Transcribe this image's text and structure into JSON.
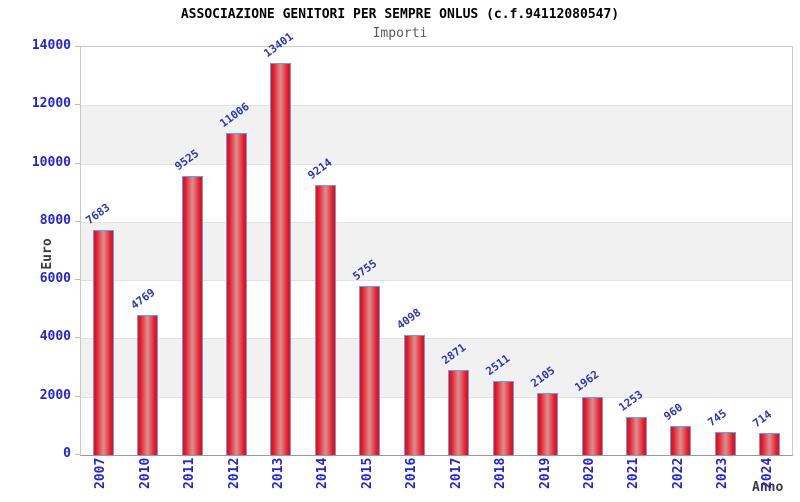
{
  "header": {
    "title": "ASSOCIAZIONE GENITORI PER SEMPRE ONLUS (c.f.94112080547)",
    "subtitle": "Importi"
  },
  "axes": {
    "y_label": "Euro",
    "x_label": "Anno",
    "y_ticks": [
      0,
      2000,
      4000,
      6000,
      8000,
      10000,
      12000,
      14000
    ]
  },
  "colors": {
    "tick_text": "#2424d0",
    "value_text": "#2c38ae",
    "bar_edge_red": "#e30b1e",
    "bar_mid_highlight": "#d98c8c",
    "bar_border_blue": "#64a0e8",
    "band_gray": "#f1f1f2",
    "band_white": "#ffffff",
    "grid_line": "#e2e2e2",
    "title_text": "#000000",
    "subtitle_text": "#5a5a5a"
  },
  "chart_data": {
    "type": "bar",
    "title": "ASSOCIAZIONE GENITORI PER SEMPRE ONLUS (c.f.94112080547)",
    "subtitle": "Importi",
    "xlabel": "Anno",
    "ylabel": "Euro",
    "ylim": [
      0,
      14000
    ],
    "grid": true,
    "band_pattern": "alternating white/gray every 2000 starting white at top",
    "categories": [
      "2007",
      "2010",
      "2011",
      "2012",
      "2013",
      "2014",
      "2015",
      "2016",
      "2017",
      "2018",
      "2019",
      "2020",
      "2021",
      "2022",
      "2023",
      "2024"
    ],
    "values": [
      7683,
      4769,
      9525,
      11006,
      13401,
      9214,
      5755,
      4098,
      2871,
      2511,
      2105,
      1962,
      1253,
      960,
      745,
      714
    ]
  }
}
